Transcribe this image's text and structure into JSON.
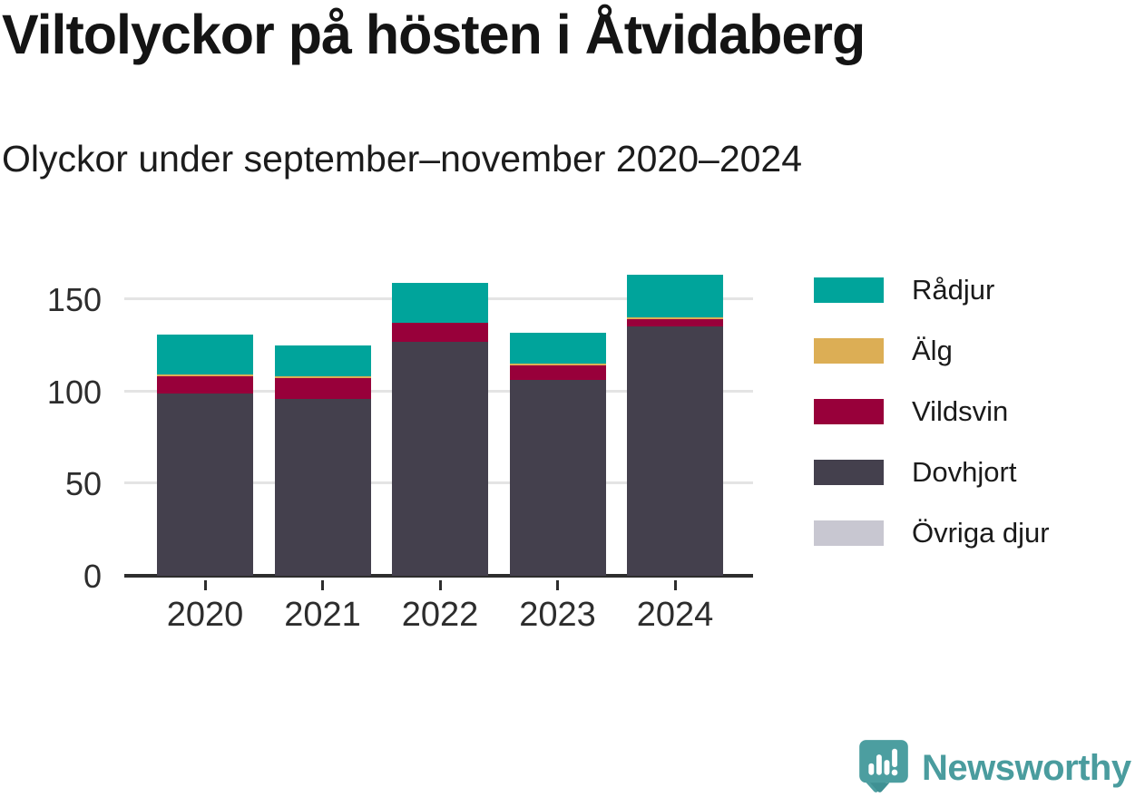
{
  "header": {
    "title": "Viltolyckor på hösten i Åtvidaberg",
    "subtitle": "Olyckor under september–november 2020–2024"
  },
  "chart_data": {
    "type": "bar",
    "stacked": true,
    "title": "Viltolyckor på hösten i Åtvidaberg",
    "subtitle": "Olyckor under september–november 2020–2024",
    "categories": [
      "2020",
      "2021",
      "2022",
      "2023",
      "2024"
    ],
    "series": [
      {
        "name": "Övriga djur",
        "color": "#c8c7d1",
        "values": [
          0,
          0,
          0,
          0,
          0
        ]
      },
      {
        "name": "Dovhjort",
        "color": "#44404d",
        "values": [
          99,
          96,
          127,
          106,
          135
        ]
      },
      {
        "name": "Vildsvin",
        "color": "#98003a",
        "values": [
          9,
          11,
          10,
          8,
          4
        ]
      },
      {
        "name": "Älg",
        "color": "#dcae55",
        "values": [
          1,
          1,
          0,
          1,
          1
        ]
      },
      {
        "name": "Rådjur",
        "color": "#00a49b",
        "values": [
          22,
          17,
          22,
          17,
          23
        ]
      }
    ],
    "totals": [
      131,
      125,
      159,
      132,
      163
    ],
    "xlabel": "",
    "ylabel": "",
    "yticks": [
      0,
      50,
      100,
      150
    ],
    "ylim": [
      0,
      163
    ],
    "grid": "horizontal-only",
    "legend_position": "right",
    "legend": [
      {
        "label": "Rådjur",
        "color": "#00a49b"
      },
      {
        "label": "Älg",
        "color": "#dcae55"
      },
      {
        "label": "Vildsvin",
        "color": "#98003a"
      },
      {
        "label": "Dovhjort",
        "color": "#44404d"
      },
      {
        "label": "Övriga djur",
        "color": "#c8c7d1"
      }
    ]
  },
  "footer": {
    "brand": "Newsworthy",
    "brand_color": "#4a9c9e",
    "logo_icon": "newsworthy-speech-bubble-chart-icon"
  }
}
